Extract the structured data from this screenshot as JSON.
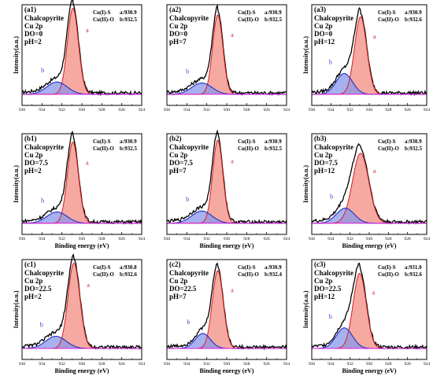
{
  "colors": {
    "raw_line": "#000000",
    "peak_a_line": "#d42020",
    "peak_a_fill": "#f39a90",
    "peak_b_line": "#1f2fc4",
    "peak_b_fill": "#8a97ea",
    "background_line": "#e21ee0"
  },
  "chart_data": [
    {
      "type": "line",
      "panel": "(a1)",
      "sample": [
        "Chalcopyrite",
        "Cu 2p",
        "DO=0",
        "pH=2"
      ],
      "species": [
        {
          "label": "Cu(I)-S",
          "peak": "a:930.9"
        },
        {
          "label": "Cu(II)-O",
          "peak": "b:932.5"
        }
      ],
      "xlabel": "",
      "ylabel": "Intensity(a.u.)",
      "xlim": [
        936,
        924
      ],
      "xticks": [
        "936",
        "934",
        "932",
        "930",
        "928",
        "926",
        "924"
      ],
      "peak_a": {
        "label": "a",
        "center": 930.9,
        "height": 0.91,
        "fwhm": 1.3
      },
      "peak_b": {
        "label": "b",
        "center": 932.5,
        "height": 0.13,
        "fwhm": 2.4
      }
    },
    {
      "type": "line",
      "panel": "(a2)",
      "sample": [
        "Chalcopyrite",
        "Cu 2p",
        "DO=0",
        "pH=7"
      ],
      "species": [
        {
          "label": "Cu(I)-S",
          "peak": "a:930.9"
        },
        {
          "label": "Cu(II)-O",
          "peak": "b:932.5"
        }
      ],
      "xlabel": "",
      "ylabel": "",
      "xlim": [
        936,
        924
      ],
      "xticks": [
        "936",
        "934",
        "932",
        "930",
        "928",
        "926",
        "924"
      ],
      "peak_a": {
        "label": "a",
        "center": 930.9,
        "height": 0.84,
        "fwhm": 1.2
      },
      "peak_b": {
        "label": "b",
        "center": 932.5,
        "height": 0.12,
        "fwhm": 2.4
      }
    },
    {
      "type": "line",
      "panel": "(a3)",
      "sample": [
        "Chalcopyrite",
        "Cu 2p",
        "DO=0",
        "pH=12"
      ],
      "species": [
        {
          "label": "Cu(I)-S",
          "peak": "a:930.9"
        },
        {
          "label": "Cu(II)-O",
          "peak": "b:932.6"
        }
      ],
      "xlabel": "",
      "ylabel": "Intensity(a.u.)",
      "xlim": [
        936,
        924
      ],
      "xticks": [
        "936",
        "934",
        "932",
        "930",
        "928",
        "926",
        "924"
      ],
      "peak_a": {
        "label": "a",
        "center": 930.9,
        "height": 0.82,
        "fwhm": 1.5
      },
      "peak_b": {
        "label": "b",
        "center": 932.6,
        "height": 0.22,
        "fwhm": 2.0
      }
    },
    {
      "type": "line",
      "panel": "(b1)",
      "sample": [
        "Chalcopyrite",
        "Cu 2p",
        "DO=7.5",
        "pH=2"
      ],
      "species": [
        {
          "label": "Cu(I)-S",
          "peak": "a:930.9"
        },
        {
          "label": "Cu(II)-O",
          "peak": "b:932.5"
        }
      ],
      "xlabel": "Binding energy (eV)",
      "ylabel": "Intensity(a.u.)",
      "xlim": [
        936,
        924
      ],
      "xticks": [
        "936",
        "934",
        "932",
        "930",
        "928",
        "926",
        "924"
      ],
      "peak_a": {
        "label": "a",
        "center": 930.9,
        "height": 0.86,
        "fwhm": 1.3
      },
      "peak_b": {
        "label": "b",
        "center": 932.5,
        "height": 0.12,
        "fwhm": 2.4
      }
    },
    {
      "type": "line",
      "panel": "(b2)",
      "sample": [
        "Chalcopyrite",
        "Cu 2p",
        "DO=7.5",
        "pH=7"
      ],
      "species": [
        {
          "label": "Cu(I)-S",
          "peak": "a:930.9"
        },
        {
          "label": "Cu(II)-O",
          "peak": "b:932.5"
        }
      ],
      "xlabel": "Binding energy (eV)",
      "ylabel": "",
      "xlim": [
        936,
        924
      ],
      "xticks": [
        "936",
        "934",
        "932",
        "930",
        "928",
        "926",
        "924"
      ],
      "peak_a": {
        "label": "a",
        "center": 930.9,
        "height": 0.88,
        "fwhm": 1.2
      },
      "peak_b": {
        "label": "b",
        "center": 932.5,
        "height": 0.13,
        "fwhm": 2.4
      }
    },
    {
      "type": "line",
      "panel": "(b3)",
      "sample": [
        "Chalcopyrite",
        "Cu 2p",
        "DO=7.5",
        "pH=12"
      ],
      "species": [
        {
          "label": "Cu(I)-S",
          "peak": "a:930.9"
        },
        {
          "label": "Cu(II)-O",
          "peak": "b:932.5"
        }
      ],
      "xlabel": "Binding energy (eV)",
      "ylabel": "Intensity(a.u.)",
      "xlim": [
        936,
        924
      ],
      "xticks": [
        "936",
        "934",
        "932",
        "930",
        "928",
        "926",
        "924"
      ],
      "peak_a": {
        "label": "a",
        "center": 930.9,
        "height": 0.74,
        "fwhm": 2.0
      },
      "peak_b": {
        "label": "b",
        "center": 932.5,
        "height": 0.16,
        "fwhm": 2.2
      }
    },
    {
      "type": "line",
      "panel": "(c1)",
      "sample": [
        "Chalcopyrite",
        "Cu 2p",
        "DO=22.5",
        "pH=2"
      ],
      "species": [
        {
          "label": "Cu(I)-S",
          "peak": "a:930.8"
        },
        {
          "label": "Cu(II)-O",
          "peak": "b:932.6"
        }
      ],
      "xlabel": "Binding energy (eV)",
      "ylabel": "Intensity(a.u.)",
      "xlim": [
        936,
        924
      ],
      "xticks": [
        "936",
        "934",
        "932",
        "930",
        "928",
        "926",
        "924"
      ],
      "peak_a": {
        "label": "a",
        "center": 930.8,
        "height": 0.91,
        "fwhm": 1.4
      },
      "peak_b": {
        "label": "b",
        "center": 932.6,
        "height": 0.13,
        "fwhm": 2.4
      }
    },
    {
      "type": "line",
      "panel": "(c2)",
      "sample": [
        "Chalcopyrite",
        "Cu 2p",
        "DO=22.5",
        "pH=7"
      ],
      "species": [
        {
          "label": "Cu(I)-S",
          "peak": "a:930.9"
        },
        {
          "label": "Cu(II)-O",
          "peak": "b:932.4"
        }
      ],
      "xlabel": "Binding energy (eV)",
      "ylabel": "",
      "xlim": [
        936,
        924
      ],
      "xticks": [
        "936",
        "934",
        "932",
        "930",
        "928",
        "926",
        "924"
      ],
      "peak_a": {
        "label": "a",
        "center": 930.9,
        "height": 0.83,
        "fwhm": 1.3
      },
      "peak_b": {
        "label": "b",
        "center": 932.4,
        "height": 0.16,
        "fwhm": 1.8
      }
    },
    {
      "type": "line",
      "panel": "(c3)",
      "sample": [
        "Chalcopyrite",
        "Cu 2p",
        "DO=22.5",
        "pH=12"
      ],
      "species": [
        {
          "label": "Cu(I)-S",
          "peak": "a:931.0"
        },
        {
          "label": "Cu(II)-O",
          "peak": "b:932.6"
        }
      ],
      "xlabel": "Binding energy (eV)",
      "ylabel": "Intensity(a.u.)",
      "xlim": [
        936,
        924
      ],
      "xticks": [
        "936",
        "934",
        "932",
        "930",
        "928",
        "926",
        "924"
      ],
      "peak_a": {
        "label": "a",
        "center": 931.0,
        "height": 0.8,
        "fwhm": 1.6
      },
      "peak_b": {
        "label": "b",
        "center": 932.6,
        "height": 0.22,
        "fwhm": 2.0
      }
    }
  ]
}
